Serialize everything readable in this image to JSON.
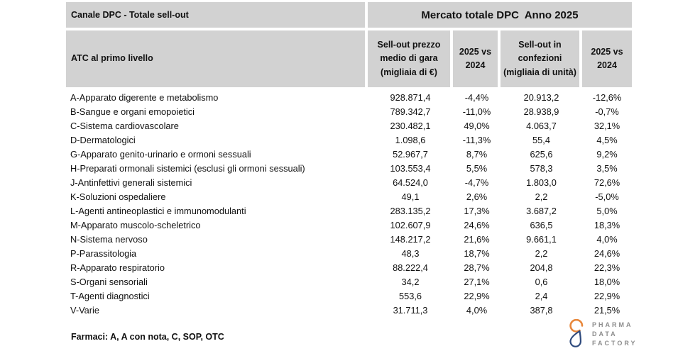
{
  "chart_data": {
    "type": "table",
    "title": "Mercato totale DPC  Anno 2025",
    "subtitle": "Canale DPC - Totale sell-out",
    "columns": [
      "ATC al primo livello",
      "Sell-out prezzo medio di gara (migliaia di €)",
      "2025 vs 2024",
      "Sell-out in confezioni (migliaia di unità)",
      "2025 vs 2024"
    ],
    "rows": [
      [
        "A-Apparato digerente e metabolismo",
        "928.871,4",
        "-4,4%",
        "20.913,2",
        "-12,6%"
      ],
      [
        "B-Sangue e organi emopoietici",
        "789.342,7",
        "-11,0%",
        "28.938,9",
        "-0,7%"
      ],
      [
        "C-Sistema cardiovascolare",
        "230.482,1",
        "49,0%",
        "4.063,7",
        "32,1%"
      ],
      [
        "D-Dermatologici",
        "1.098,6",
        "-11,3%",
        "55,4",
        "4,5%"
      ],
      [
        "G-Apparato genito-urinario e ormoni sessuali",
        "52.967,7",
        "8,7%",
        "625,6",
        "9,2%"
      ],
      [
        "H-Preparati ormonali sistemici (esclusi gli ormoni sessuali)",
        "103.553,4",
        "5,5%",
        "578,3",
        "3,5%"
      ],
      [
        "J-Antinfettivi generali sistemici",
        "64.524,0",
        "-4,7%",
        "1.803,0",
        "72,6%"
      ],
      [
        "K-Soluzioni ospedaliere",
        "49,1",
        "2,6%",
        "2,2",
        "-5,0%"
      ],
      [
        "L-Agenti antineoplastici e immunomodulanti",
        "283.135,2",
        "17,3%",
        "3.687,2",
        "5,0%"
      ],
      [
        "M-Apparato muscolo-scheletrico",
        "102.607,9",
        "24,6%",
        "636,5",
        "18,3%"
      ],
      [
        "N-Sistema nervoso",
        "148.217,2",
        "21,6%",
        "9.661,1",
        "4,0%"
      ],
      [
        "P-Parassitologia",
        "48,3",
        "18,7%",
        "2,2",
        "24,6%"
      ],
      [
        "R-Apparato respiratorio",
        "88.222,4",
        "28,7%",
        "204,8",
        "22,3%"
      ],
      [
        "S-Organi sensoriali",
        "34,2",
        "27,1%",
        "0,6",
        "18,0%"
      ],
      [
        "T-Agenti diagnostici",
        "553,6",
        "22,9%",
        "2,4",
        "22,9%"
      ],
      [
        "V-Varie",
        "31.711,3",
        "4,0%",
        "387,8",
        "21,5%"
      ]
    ]
  },
  "footer": {
    "note": "Farmaci: A, A con nota, C, SOP, OTC"
  },
  "logo": {
    "line1": "PHARMA",
    "line2": "DATA",
    "line3": "FACTORY"
  },
  "colors": {
    "header_bg": "#d2d2d2",
    "logo_orange": "#e8873b",
    "logo_blue": "#2e4a7d",
    "logo_text": "#8c8c8c"
  }
}
